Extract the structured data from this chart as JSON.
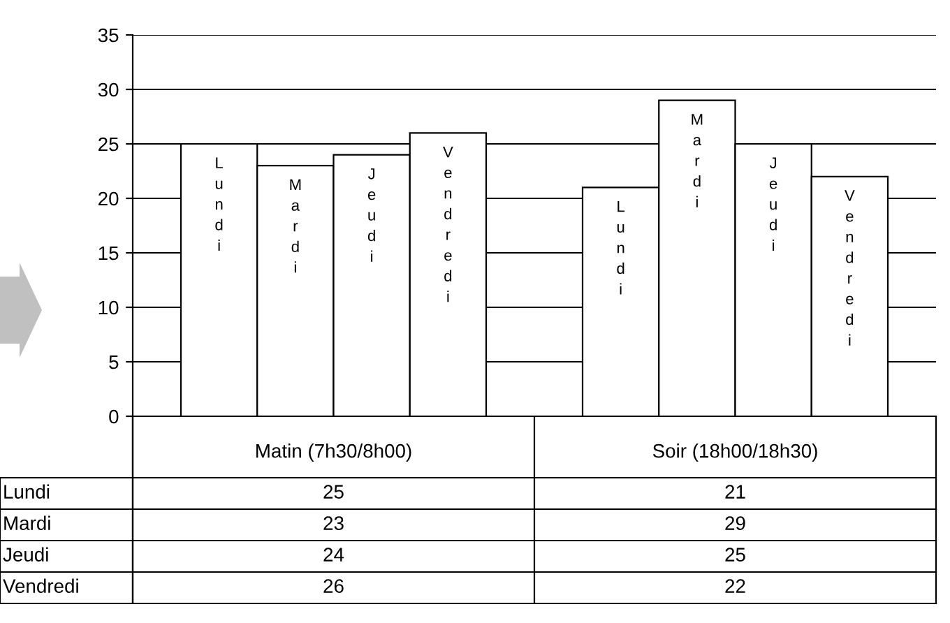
{
  "chart_data": {
    "type": "bar",
    "categories": [
      "Matin (7h30/8h00)",
      "Soir (18h00/18h30)"
    ],
    "series": [
      {
        "name": "Lundi",
        "color": "#ffffff",
        "values": [
          25,
          21
        ]
      },
      {
        "name": "Mardi",
        "color": "#ffffff",
        "values": [
          23,
          29
        ]
      },
      {
        "name": "Jeudi",
        "color": "#ffffff",
        "values": [
          24,
          25
        ]
      },
      {
        "name": "Vendredi",
        "color": "#ffffff",
        "values": [
          26,
          22
        ]
      }
    ],
    "ylim": [
      0,
      35
    ],
    "yticks": [
      0,
      5,
      10,
      15,
      20,
      25,
      30,
      35
    ],
    "grid": "y",
    "legend": false,
    "data_labels": true
  }
}
